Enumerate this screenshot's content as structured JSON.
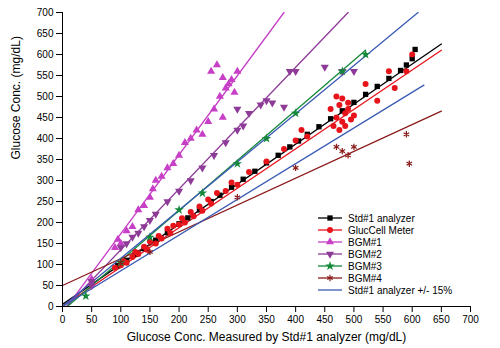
{
  "chart_data": {
    "type": "scatter",
    "x_label": "Glucose Conc. Measured by Std#1 analyzer (mg/dL)",
    "y_label": "Glucose Conc. (mg/dL)",
    "xlim": [
      0,
      700
    ],
    "ylim": [
      0,
      700
    ],
    "xticks": [
      0,
      50,
      100,
      150,
      200,
      250,
      300,
      350,
      400,
      450,
      500,
      550,
      600,
      650,
      700
    ],
    "yticks": [
      0,
      50,
      100,
      150,
      200,
      250,
      300,
      350,
      400,
      450,
      500,
      550,
      600,
      650,
      700
    ],
    "grid": false,
    "legend": "lower right",
    "series": [
      {
        "name": "Std#1 analyzer",
        "color": "#000000",
        "marker": "square",
        "values": [
          [
            95,
            97
          ],
          [
            110,
            110
          ],
          [
            125,
            124
          ],
          [
            140,
            138
          ],
          [
            160,
            158
          ],
          [
            180,
            176
          ],
          [
            200,
            197
          ],
          [
            215,
            211
          ],
          [
            235,
            230
          ],
          [
            255,
            250
          ],
          [
            270,
            265
          ],
          [
            290,
            284
          ],
          [
            310,
            303
          ],
          [
            330,
            322
          ],
          [
            350,
            342
          ],
          [
            370,
            360
          ],
          [
            390,
            380
          ],
          [
            405,
            394
          ],
          [
            420,
            410
          ],
          [
            440,
            428
          ],
          [
            460,
            447
          ],
          [
            480,
            466
          ],
          [
            500,
            486
          ],
          [
            520,
            505
          ],
          [
            540,
            524
          ],
          [
            560,
            543
          ],
          [
            580,
            562
          ],
          [
            590,
            575
          ],
          [
            600,
            590
          ],
          [
            605,
            612
          ]
        ],
        "fit": [
          [
            [
              0,
              5
            ],
            [
              650,
              625
            ]
          ]
        ]
      },
      {
        "name": "GlucCell Meter",
        "color": "#e8141b",
        "marker": "circle",
        "values": [
          [
            90,
            92
          ],
          [
            100,
            98
          ],
          [
            105,
            108
          ],
          [
            110,
            104
          ],
          [
            120,
            118
          ],
          [
            125,
            130
          ],
          [
            130,
            125
          ],
          [
            140,
            142
          ],
          [
            145,
            135
          ],
          [
            150,
            155
          ],
          [
            160,
            150
          ],
          [
            165,
            168
          ],
          [
            170,
            162
          ],
          [
            180,
            185
          ],
          [
            185,
            175
          ],
          [
            190,
            192
          ],
          [
            200,
            195
          ],
          [
            205,
            210
          ],
          [
            210,
            200
          ],
          [
            220,
            225
          ],
          [
            225,
            215
          ],
          [
            235,
            238
          ],
          [
            240,
            228
          ],
          [
            250,
            255
          ],
          [
            255,
            245
          ],
          [
            265,
            270
          ],
          [
            280,
            275
          ],
          [
            290,
            295
          ],
          [
            300,
            290
          ],
          [
            320,
            320
          ],
          [
            350,
            345
          ],
          [
            380,
            375
          ],
          [
            400,
            395
          ],
          [
            410,
            420
          ],
          [
            420,
            405
          ],
          [
            460,
            470
          ],
          [
            465,
            430
          ],
          [
            470,
            500
          ],
          [
            470,
            450
          ],
          [
            475,
            420
          ],
          [
            475,
            480
          ],
          [
            480,
            440
          ],
          [
            480,
            495
          ],
          [
            485,
            460
          ],
          [
            485,
            430
          ],
          [
            490,
            470
          ],
          [
            490,
            485
          ],
          [
            495,
            445
          ],
          [
            500,
            455
          ],
          [
            520,
            530
          ],
          [
            540,
            490
          ],
          [
            560,
            560
          ],
          [
            570,
            520
          ],
          [
            590,
            560
          ],
          [
            600,
            600
          ]
        ],
        "fit": [
          [
            [
              0,
              0
            ],
            [
              650,
              610
            ]
          ]
        ]
      },
      {
        "name": "BGM#1",
        "color": "#c63fc6",
        "marker": "triangle",
        "values": [
          [
            50,
            55
          ],
          [
            50,
            65
          ],
          [
            90,
            140
          ],
          [
            95,
            160
          ],
          [
            100,
            150
          ],
          [
            110,
            180
          ],
          [
            120,
            190
          ],
          [
            130,
            230
          ],
          [
            140,
            240
          ],
          [
            150,
            260
          ],
          [
            155,
            280
          ],
          [
            160,
            300
          ],
          [
            170,
            310
          ],
          [
            180,
            330
          ],
          [
            190,
            340
          ],
          [
            200,
            360
          ],
          [
            210,
            390
          ],
          [
            220,
            400
          ],
          [
            230,
            420
          ],
          [
            240,
            410
          ],
          [
            250,
            440
          ],
          [
            260,
            470
          ],
          [
            270,
            500
          ],
          [
            275,
            450
          ],
          [
            280,
            520
          ],
          [
            285,
            530
          ],
          [
            290,
            540
          ],
          [
            295,
            510
          ],
          [
            300,
            560
          ],
          [
            255,
            560
          ],
          [
            265,
            575
          ],
          [
            275,
            545
          ]
        ],
        "fit": [
          [
            [
              0,
              -15
            ],
            [
              380,
              700
            ]
          ]
        ]
      },
      {
        "name": "BGM#2",
        "color": "#8e3b98",
        "marker": "triangle-down",
        "values": [
          [
            50,
            50
          ],
          [
            50,
            60
          ],
          [
            100,
            140
          ],
          [
            110,
            150
          ],
          [
            120,
            165
          ],
          [
            130,
            175
          ],
          [
            140,
            190
          ],
          [
            150,
            205
          ],
          [
            160,
            220
          ],
          [
            180,
            250
          ],
          [
            200,
            275
          ],
          [
            220,
            300
          ],
          [
            240,
            330
          ],
          [
            260,
            360
          ],
          [
            280,
            390
          ],
          [
            300,
            420
          ],
          [
            300,
            470
          ],
          [
            310,
            430
          ],
          [
            320,
            460
          ],
          [
            340,
            480
          ],
          [
            360,
            485
          ],
          [
            380,
            475
          ],
          [
            350,
            490
          ],
          [
            390,
            560
          ],
          [
            400,
            560
          ],
          [
            450,
            570
          ],
          [
            480,
            560
          ],
          [
            500,
            560
          ]
        ],
        "fit": [
          [
            [
              0,
              -10
            ],
            [
              490,
              700
            ]
          ]
        ]
      },
      {
        "name": "BGM#3",
        "color": "#14883a",
        "marker": "star",
        "values": [
          [
            40,
            25
          ],
          [
            100,
            105
          ],
          [
            150,
            165
          ],
          [
            200,
            230
          ],
          [
            240,
            270
          ],
          [
            300,
            340
          ],
          [
            350,
            400
          ],
          [
            400,
            460
          ],
          [
            480,
            560
          ],
          [
            520,
            600
          ]
        ],
        "fit": [
          [
            [
              0,
              -10
            ],
            [
              520,
              610
            ]
          ]
        ]
      },
      {
        "name": "BGM#4",
        "color": "#8b1a1a",
        "marker": "asterisk",
        "values": [
          [
            100,
            105
          ],
          [
            150,
            130
          ],
          [
            300,
            260
          ],
          [
            400,
            330
          ],
          [
            470,
            380
          ],
          [
            480,
            370
          ],
          [
            490,
            360
          ],
          [
            500,
            380
          ],
          [
            590,
            410
          ],
          [
            595,
            340
          ]
        ],
        "fit": [
          [
            [
              0,
              50
            ],
            [
              650,
              465
            ]
          ]
        ]
      },
      {
        "name": "Std#1 analyzer +/- 15%",
        "color": "#3b5bb5",
        "fit": [
          [
            [
              0,
              0
            ],
            [
              610,
              700
            ]
          ],
          [
            [
              0,
              0
            ],
            [
              620,
              527
            ]
          ]
        ]
      }
    ]
  }
}
